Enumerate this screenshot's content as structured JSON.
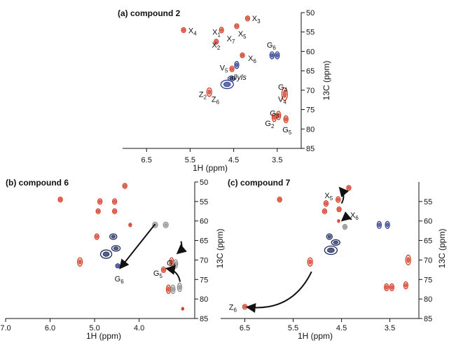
{
  "colors": {
    "red": "#d23a22",
    "blue": "#2d3f8c",
    "gray": "#8a8a8a",
    "navy": "#1b2a5a",
    "black": "#111111"
  },
  "chart_data": [
    {
      "type": "scatter",
      "title": "(a) compound 2",
      "xlabel": "1H (ppm)",
      "ylabel": "13C (ppm)",
      "xlim": [
        7.05,
        2.95
      ],
      "ylim": [
        50,
        85
      ],
      "x_ticks": [
        {
          "value": 6.5,
          "label": "6.5"
        },
        {
          "value": 5.5,
          "label": "5.5"
        },
        {
          "value": 4.5,
          "label": "4.5"
        },
        {
          "value": 3.5,
          "label": "3.5"
        }
      ],
      "y_ticks": [
        {
          "value": 50,
          "label": "50"
        },
        {
          "value": 55,
          "label": "55"
        },
        {
          "value": 60,
          "label": "60"
        },
        {
          "value": 65,
          "label": "65"
        },
        {
          "value": 70,
          "label": "70"
        },
        {
          "value": 75,
          "label": "75"
        },
        {
          "value": 80,
          "label": "80"
        },
        {
          "value": 85,
          "label": "85"
        }
      ],
      "peaks": [
        {
          "x": 4.18,
          "y": 51.5,
          "color": "red",
          "rx": 3,
          "ry": 3.5
        },
        {
          "x": 5.65,
          "y": 54.5,
          "color": "red",
          "rx": 3,
          "ry": 3.5
        },
        {
          "x": 4.78,
          "y": 54.5,
          "color": "red",
          "rx": 3,
          "ry": 4
        },
        {
          "x": 4.43,
          "y": 53.5,
          "color": "red",
          "rx": 3,
          "ry": 3.5
        },
        {
          "x": 4.9,
          "y": 57.5,
          "color": "red",
          "rx": 3,
          "ry": 3.5
        },
        {
          "x": 4.3,
          "y": 61.0,
          "color": "red",
          "rx": 3,
          "ry": 3.5
        },
        {
          "x": 3.62,
          "y": 61.0,
          "color": "blue",
          "rx": 3,
          "ry": 5
        },
        {
          "x": 3.5,
          "y": 61.0,
          "color": "blue",
          "rx": 3,
          "ry": 5
        },
        {
          "x": 4.43,
          "y": 63.5,
          "color": "blue",
          "rx": 3,
          "ry": 5
        },
        {
          "x": 4.54,
          "y": 64.5,
          "color": "red",
          "rx": 3,
          "ry": 4
        },
        {
          "x": 4.55,
          "y": 67.0,
          "color": "blue",
          "rx": 5,
          "ry": 3.5
        },
        {
          "x": 4.65,
          "y": 68.5,
          "color": "blue",
          "rx": 9,
          "ry": 6
        },
        {
          "x": 5.06,
          "y": 70.5,
          "color": "red",
          "rx": 3.5,
          "ry": 6
        },
        {
          "x": 3.33,
          "y": 71.0,
          "color": "red",
          "rx": 4,
          "ry": 9
        },
        {
          "x": 3.57,
          "y": 77.0,
          "color": "red",
          "rx": 3,
          "ry": 6
        },
        {
          "x": 3.47,
          "y": 76.5,
          "color": "red",
          "rx": 3,
          "ry": 6
        },
        {
          "x": 3.3,
          "y": 77.5,
          "color": "red",
          "rx": 3,
          "ry": 5
        }
      ],
      "labels": [
        {
          "base": "X",
          "sub": "3",
          "x": 4.08,
          "y": 51.4
        },
        {
          "base": "X",
          "sub": "4",
          "x": 5.54,
          "y": 54.6
        },
        {
          "base": "X",
          "sub": "1",
          "x": 4.99,
          "y": 55.0
        },
        {
          "base": "X",
          "sub": "5",
          "x": 4.4,
          "y": 55.4
        },
        {
          "base": "X",
          "sub": "7",
          "x": 4.66,
          "y": 56.7
        },
        {
          "base": "X",
          "sub": "2",
          "x": 5.0,
          "y": 58.3
        },
        {
          "base": "G",
          "sub": "6",
          "x": 3.74,
          "y": 58.3
        },
        {
          "base": "X",
          "sub": "6",
          "x": 4.17,
          "y": 61.7
        },
        {
          "base": "V",
          "sub": "5",
          "x": 4.82,
          "y": 64.2
        },
        {
          "base": "allyls",
          "sub": "",
          "x": 4.6,
          "y": 66.6
        },
        {
          "base": "Z",
          "sub": "2",
          "x": 5.3,
          "y": 71.0
        },
        {
          "base": "G",
          "sub": "4",
          "x": 3.48,
          "y": 69.1
        },
        {
          "base": "Z",
          "sub": "6",
          "x": 5.01,
          "y": 72.3
        },
        {
          "base": "V",
          "sub": "4",
          "x": 3.48,
          "y": 72.3
        },
        {
          "base": "G",
          "sub": "3",
          "x": 3.67,
          "y": 75.9
        },
        {
          "base": "G",
          "sub": "2",
          "x": 3.78,
          "y": 78.5
        },
        {
          "base": "G",
          "sub": "5",
          "x": 3.38,
          "y": 80.1
        }
      ],
      "arrows": []
    },
    {
      "type": "scatter",
      "title": "(b) compound 6",
      "xlabel": "1H (ppm)",
      "ylabel": "13C (ppm)",
      "xlim": [
        7.0,
        2.75
      ],
      "ylim": [
        50,
        85
      ],
      "x_ticks": [
        {
          "value": 7.0,
          "label": "7.0"
        },
        {
          "value": 6.0,
          "label": "6.0"
        },
        {
          "value": 5.0,
          "label": "5.0"
        },
        {
          "value": 4.0,
          "label": "4.0"
        }
      ],
      "y_ticks": [
        {
          "value": 50,
          "label": "50"
        },
        {
          "value": 55,
          "label": "55"
        },
        {
          "value": 60,
          "label": "60"
        },
        {
          "value": 65,
          "label": "65"
        },
        {
          "value": 70,
          "label": "70"
        },
        {
          "value": 75,
          "label": "75"
        },
        {
          "value": 80,
          "label": "80"
        },
        {
          "value": 85,
          "label": "85"
        }
      ],
      "peaks": [
        {
          "x": 4.32,
          "y": 51.0,
          "color": "red",
          "rx": 3,
          "ry": 3.5
        },
        {
          "x": 5.77,
          "y": 54.5,
          "color": "red",
          "rx": 3,
          "ry": 3.5
        },
        {
          "x": 4.88,
          "y": 55.0,
          "color": "red",
          "rx": 3,
          "ry": 4
        },
        {
          "x": 4.55,
          "y": 55.0,
          "color": "red",
          "rx": 3,
          "ry": 4
        },
        {
          "x": 4.92,
          "y": 57.5,
          "color": "red",
          "rx": 3,
          "ry": 3.5
        },
        {
          "x": 4.55,
          "y": 57.5,
          "color": "red",
          "rx": 3,
          "ry": 3.5
        },
        {
          "x": 4.2,
          "y": 61.0,
          "color": "red",
          "rx": 2,
          "ry": 2.5
        },
        {
          "x": 3.64,
          "y": 61.0,
          "color": "gray",
          "rx": 3.5,
          "ry": 4
        },
        {
          "x": 3.4,
          "y": 61.0,
          "color": "gray",
          "rx": 3.5,
          "ry": 4
        },
        {
          "x": 4.58,
          "y": 64.0,
          "color": "navy",
          "rx": 5,
          "ry": 4
        },
        {
          "x": 4.95,
          "y": 64.0,
          "color": "red",
          "rx": 3,
          "ry": 4
        },
        {
          "x": 4.52,
          "y": 67.0,
          "color": "navy",
          "rx": 6,
          "ry": 4
        },
        {
          "x": 4.74,
          "y": 68.5,
          "color": "navy",
          "rx": 8,
          "ry": 6
        },
        {
          "x": 5.33,
          "y": 70.5,
          "color": "red",
          "rx": 3.5,
          "ry": 6
        },
        {
          "x": 3.27,
          "y": 70.5,
          "color": "red",
          "rx": 3,
          "ry": 6
        },
        {
          "x": 3.18,
          "y": 71.0,
          "color": "gray",
          "rx": 3,
          "ry": 6
        },
        {
          "x": 4.48,
          "y": 71.5,
          "color": "blue",
          "rx": 3,
          "ry": 3
        },
        {
          "x": 3.45,
          "y": 72.5,
          "color": "red",
          "rx": 3,
          "ry": 4
        },
        {
          "x": 3.34,
          "y": 77.5,
          "color": "red",
          "rx": 3,
          "ry": 6
        },
        {
          "x": 3.24,
          "y": 77.5,
          "color": "gray",
          "rx": 3,
          "ry": 6
        },
        {
          "x": 3.09,
          "y": 77.0,
          "color": "gray",
          "rx": 3,
          "ry": 6
        },
        {
          "x": 3.02,
          "y": 82.5,
          "color": "red",
          "rx": 1.5,
          "ry": 2
        }
      ],
      "labels": [
        {
          "base": "G",
          "sub": "4",
          "x": 3.38,
          "y": 70.7
        },
        {
          "base": "G",
          "sub": "5",
          "x": 3.68,
          "y": 73.3
        },
        {
          "base": "G",
          "sub": "6",
          "x": 4.55,
          "y": 74.8
        }
      ],
      "arrows": [
        {
          "x1": 3.64,
          "y1": 60.8,
          "x2": 4.42,
          "y2": 72.0,
          "curve": 0
        },
        {
          "x1": 3.06,
          "y1": 65.2,
          "x2": 3.13,
          "y2": 68.2,
          "curve": -1
        },
        {
          "x1": 3.08,
          "y1": 75.6,
          "x2": 3.37,
          "y2": 72.2,
          "curve": 1
        }
      ]
    },
    {
      "type": "scatter",
      "title": "(c) compound 7",
      "xlabel": "1H (ppm)",
      "ylabel": "13C (ppm)",
      "xlim": [
        7.0,
        2.9
      ],
      "ylim": [
        50,
        85
      ],
      "x_ticks": [
        {
          "value": 6.5,
          "label": "6.5"
        },
        {
          "value": 5.5,
          "label": "5.5"
        },
        {
          "value": 4.5,
          "label": "4.5"
        },
        {
          "value": 3.5,
          "label": "3.5"
        }
      ],
      "y_ticks": [
        {
          "value": 55,
          "label": "55"
        },
        {
          "value": 60,
          "label": "60"
        },
        {
          "value": 65,
          "label": "65"
        },
        {
          "value": 70,
          "label": "70"
        },
        {
          "value": 75,
          "label": "75"
        },
        {
          "value": 80,
          "label": "80"
        },
        {
          "value": 85,
          "label": "85"
        }
      ],
      "peaks": [
        {
          "x": 4.35,
          "y": 51.5,
          "color": "red",
          "rx": 3,
          "ry": 3.5
        },
        {
          "x": 5.78,
          "y": 54.5,
          "color": "red",
          "rx": 3,
          "ry": 3.5
        },
        {
          "x": 4.82,
          "y": 55.5,
          "color": "red",
          "rx": 3,
          "ry": 4
        },
        {
          "x": 4.57,
          "y": 54.5,
          "color": "red",
          "rx": 3,
          "ry": 4
        },
        {
          "x": 4.55,
          "y": 57.0,
          "color": "red",
          "rx": 3,
          "ry": 3.5
        },
        {
          "x": 4.85,
          "y": 57.5,
          "color": "red",
          "rx": 3,
          "ry": 3.5
        },
        {
          "x": 4.56,
          "y": 60.0,
          "color": "red",
          "rx": 1.5,
          "ry": 2
        },
        {
          "x": 4.43,
          "y": 61.5,
          "color": "gray",
          "rx": 3,
          "ry": 3.5
        },
        {
          "x": 3.72,
          "y": 61.0,
          "color": "blue",
          "rx": 3,
          "ry": 5
        },
        {
          "x": 3.55,
          "y": 61.0,
          "color": "blue",
          "rx": 3,
          "ry": 5
        },
        {
          "x": 4.75,
          "y": 64.0,
          "color": "navy",
          "rx": 4,
          "ry": 4
        },
        {
          "x": 4.62,
          "y": 65.5,
          "color": "navy",
          "rx": 6,
          "ry": 4
        },
        {
          "x": 4.72,
          "y": 67.5,
          "color": "navy",
          "rx": 9,
          "ry": 6
        },
        {
          "x": 5.15,
          "y": 70.5,
          "color": "red",
          "rx": 3.5,
          "ry": 6
        },
        {
          "x": 3.12,
          "y": 70.0,
          "color": "red",
          "rx": 3.5,
          "ry": 7
        },
        {
          "x": 3.57,
          "y": 77.0,
          "color": "red",
          "rx": 3,
          "ry": 5
        },
        {
          "x": 3.46,
          "y": 77.0,
          "color": "red",
          "rx": 3,
          "ry": 5
        },
        {
          "x": 3.17,
          "y": 76.5,
          "color": "red",
          "rx": 3,
          "ry": 5
        },
        {
          "x": 6.5,
          "y": 82.0,
          "color": "red",
          "rx": 3,
          "ry": 3.5
        }
      ],
      "labels": [
        {
          "base": "X",
          "sub": "5",
          "x": 4.85,
          "y": 53.4
        },
        {
          "base": "X",
          "sub": "6",
          "x": 4.32,
          "y": 58.4
        },
        {
          "base": "Z",
          "sub": "6",
          "x": 6.83,
          "y": 82.0
        }
      ],
      "arrows": [
        {
          "x1": 4.5,
          "y1": 55.5,
          "x2": 4.53,
          "y2": 51.6,
          "curve": 1
        },
        {
          "x1": 4.29,
          "y1": 59.6,
          "x2": 4.48,
          "y2": 59.8,
          "curve": 1
        },
        {
          "x1": 5.12,
          "y1": 73.0,
          "x2": 6.44,
          "y2": 82.1,
          "curve": -1
        }
      ]
    }
  ]
}
